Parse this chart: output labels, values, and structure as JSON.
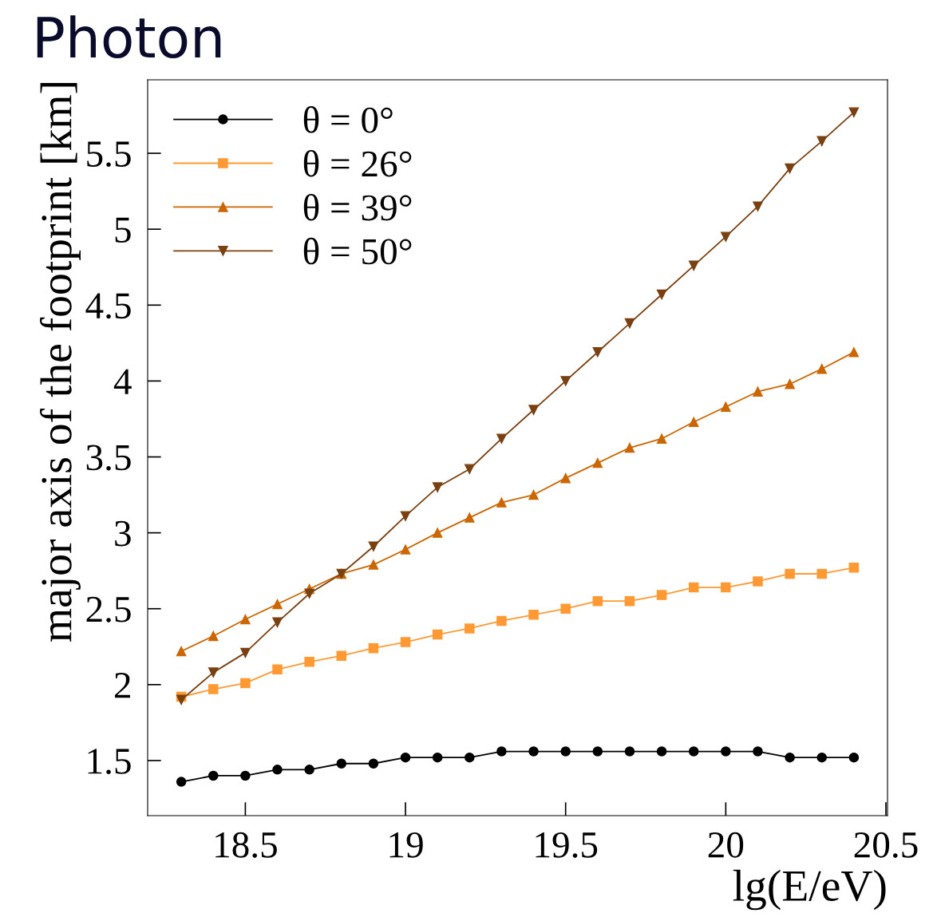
{
  "chart_data": {
    "type": "line",
    "title": "Photon",
    "xlabel": "lg(E/eV)",
    "ylabel": "major axis of the footprint [km]",
    "x": [
      18.3,
      18.4,
      18.5,
      18.6,
      18.7,
      18.8,
      18.9,
      19.0,
      19.1,
      19.2,
      19.3,
      19.4,
      19.5,
      19.6,
      19.7,
      19.8,
      19.9,
      20.0,
      20.1,
      20.2,
      20.3,
      20.4
    ],
    "series": [
      {
        "name": "θ = 0°",
        "color": "#000000",
        "marker": "circle",
        "values": [
          1.36,
          1.4,
          1.4,
          1.44,
          1.44,
          1.48,
          1.48,
          1.52,
          1.52,
          1.52,
          1.56,
          1.56,
          1.56,
          1.56,
          1.56,
          1.56,
          1.56,
          1.56,
          1.56,
          1.52,
          1.52,
          1.52
        ]
      },
      {
        "name": "θ = 26°",
        "color": "#ff9933",
        "marker": "square",
        "values": [
          1.92,
          1.97,
          2.01,
          2.1,
          2.15,
          2.19,
          2.24,
          2.28,
          2.33,
          2.37,
          2.42,
          2.46,
          2.5,
          2.55,
          2.55,
          2.59,
          2.64,
          2.64,
          2.68,
          2.73,
          2.73,
          2.77
        ]
      },
      {
        "name": "θ = 39°",
        "color": "#cc6600",
        "marker": "triangle",
        "values": [
          2.22,
          2.32,
          2.43,
          2.53,
          2.63,
          2.73,
          2.79,
          2.89,
          3.0,
          3.1,
          3.2,
          3.25,
          3.36,
          3.46,
          3.56,
          3.62,
          3.73,
          3.83,
          3.93,
          3.98,
          4.08,
          4.19
        ]
      },
      {
        "name": "θ = 50°",
        "color": "#7a4010",
        "marker": "triangle_down",
        "values": [
          1.9,
          2.08,
          2.21,
          2.41,
          2.6,
          2.73,
          2.91,
          3.11,
          3.3,
          3.42,
          3.62,
          3.81,
          4.0,
          4.19,
          4.38,
          4.57,
          4.76,
          4.95,
          5.15,
          5.4,
          5.58,
          5.77
        ]
      }
    ],
    "xlim": [
      18.195,
      20.505
    ],
    "xticks": [
      18.5,
      19,
      19.5,
      20,
      20.5
    ],
    "ylim": [
      1.137,
      5.984
    ],
    "yticks": [
      1.5,
      2,
      2.5,
      3,
      3.5,
      4,
      4.5,
      5,
      5.5
    ],
    "grid": false,
    "legend": "top left",
    "line_style": "solid"
  }
}
